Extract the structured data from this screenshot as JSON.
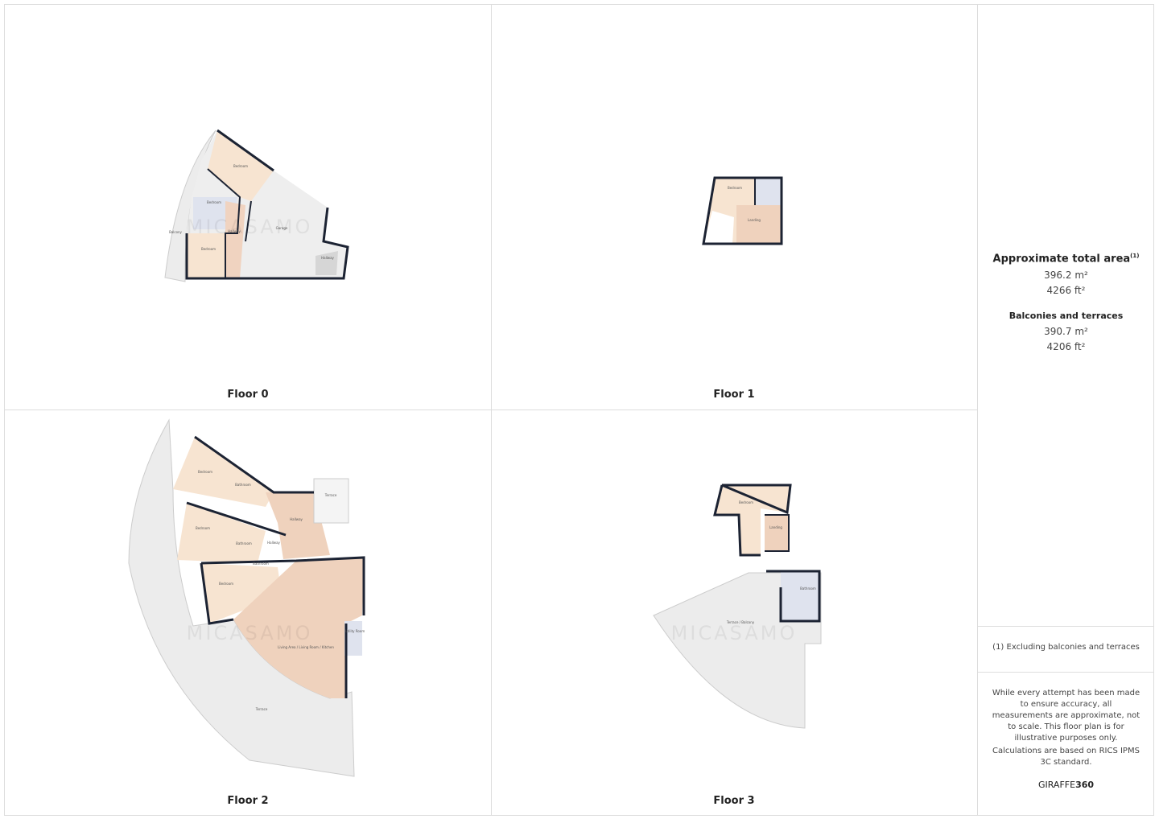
{
  "floors": [
    {
      "label": "Floor 0",
      "rooms": [
        "Bedroom",
        "Bedroom",
        "Hallway",
        "Balcony",
        "Bedroom",
        "Garage",
        "Hallway"
      ]
    },
    {
      "label": "Floor 1",
      "rooms": [
        "Bedroom",
        "Landing"
      ]
    },
    {
      "label": "Floor 2",
      "rooms": [
        "Bedroom",
        "Bathroom",
        "Terrace",
        "Bedroom",
        "Hallway",
        "Bathroom",
        "Hallway",
        "Bathroom",
        "Bedroom",
        "Utility Room",
        "Living Area / Living Room / Kitchen",
        "Terrace"
      ]
    },
    {
      "label": "Floor 3",
      "rooms": [
        "Bedroom",
        "Landing",
        "Bathroom",
        "Terrace / Balcony"
      ]
    }
  ],
  "watermark": "MICASAMO",
  "summary": {
    "total_title": "Approximate total area",
    "total_note": "(1)",
    "total_m2": "396.2 m²",
    "total_ft2": "4266 ft²",
    "balconies_title": "Balconies and terraces",
    "balconies_m2": "390.7 m²",
    "balconies_ft2": "4206 ft²"
  },
  "footnote": "(1) Excluding balconies and terraces",
  "disclaimer": "While every attempt has been made to ensure accuracy, all measurements are approximate, not to scale. This floor plan is for illustrative purposes only.",
  "calculation": "Calculations are based on RICS IPMS 3C standard.",
  "brand": {
    "name": "GIRAFFE",
    "number": "360"
  }
}
